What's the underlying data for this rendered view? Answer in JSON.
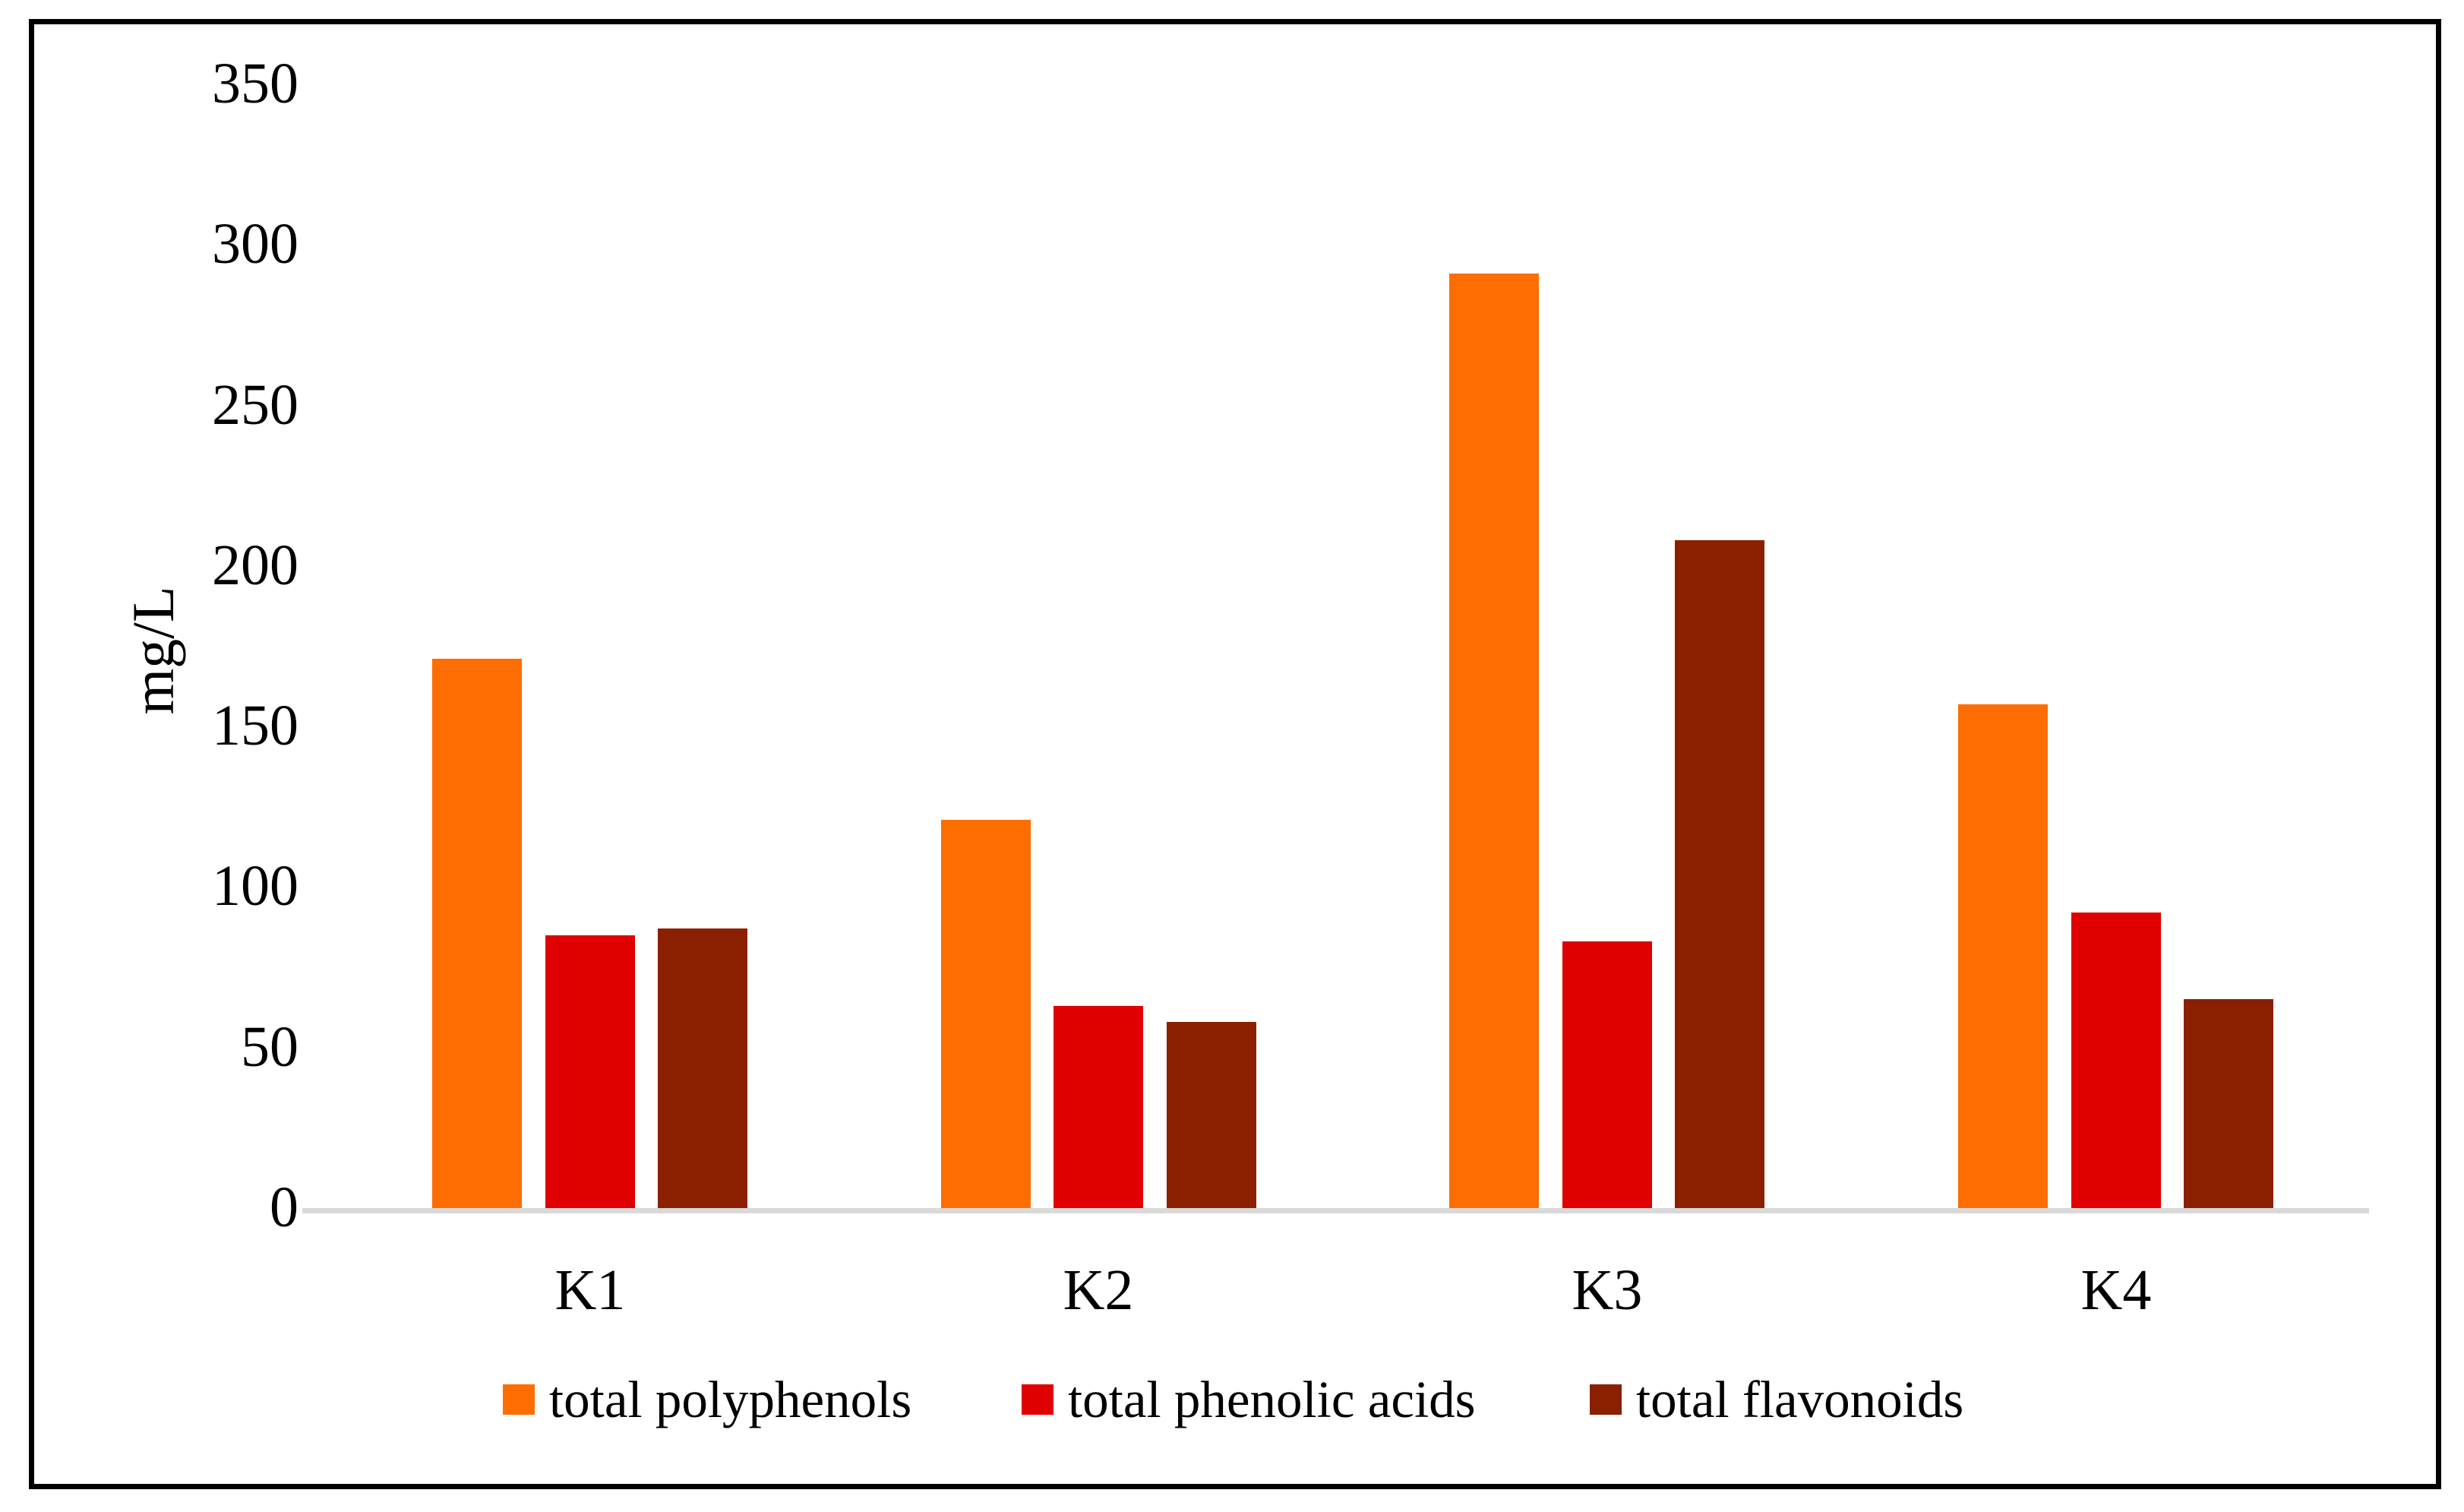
{
  "chart_data": {
    "type": "bar",
    "title": "",
    "xlabel": "",
    "ylabel": "mg/L",
    "categories": [
      "K1",
      "K2",
      "K3",
      "K4"
    ],
    "series": [
      {
        "name": "total polyphenols",
        "color": "#FE6D01",
        "values": [
          171,
          121,
          291,
          157
        ]
      },
      {
        "name": "total phenolic acids",
        "color": "#E00000",
        "values": [
          85,
          63,
          83,
          92
        ]
      },
      {
        "name": "total flavonoids",
        "color": "#8B2000",
        "values": [
          87,
          58,
          208,
          65
        ]
      }
    ],
    "ylim": [
      0,
      350
    ],
    "ytick_step": 50,
    "yticks": [
      0,
      50,
      100,
      150,
      200,
      250,
      300,
      350
    ],
    "grid": false,
    "legend_position": "bottom",
    "axis_line_color": "#D9D9D9",
    "frame_color": "#000000",
    "background": "#FFFFFF"
  }
}
